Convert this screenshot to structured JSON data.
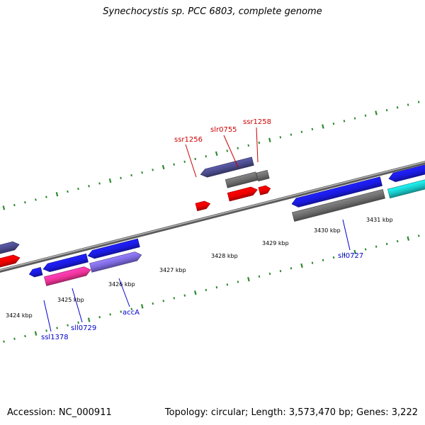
{
  "title": "Synechocystis sp. PCC 6803, complete genome",
  "footer": {
    "accession": "Accession: NC_000911",
    "summary": "Topology: circular; Length: 3,573,470 bp; Genes: 3,222"
  },
  "colors": {
    "background": "#ffffff",
    "backbone": "#8a8a8a",
    "tick": "#2e8b2e",
    "red_label": "#cc0000",
    "blue_label": "#0000cc",
    "blue_gene": "#1a1adf",
    "red_gene": "#ee0000",
    "gray_gene": "#6b6b6b",
    "purple_gene": "#7b68dd",
    "pink_gene": "#ee3399",
    "cyan_gene": "#19c8c8",
    "slate_gene": "#4a4a8a"
  },
  "kbp_labels": [
    {
      "text": "3424 kbp"
    },
    {
      "text": "3425 kbp"
    },
    {
      "text": "3426 kbp"
    },
    {
      "text": "3427 kbp"
    },
    {
      "text": "3428 kbp"
    },
    {
      "text": "3429 kbp"
    },
    {
      "text": "3430 kbp"
    },
    {
      "text": "3431 kbp"
    }
  ],
  "gene_labels": {
    "red": [
      "ssr1256",
      "slr0755",
      "ssr1258"
    ],
    "blue": [
      "ssl1378",
      "sll0729",
      "accA",
      "sll0727"
    ]
  }
}
